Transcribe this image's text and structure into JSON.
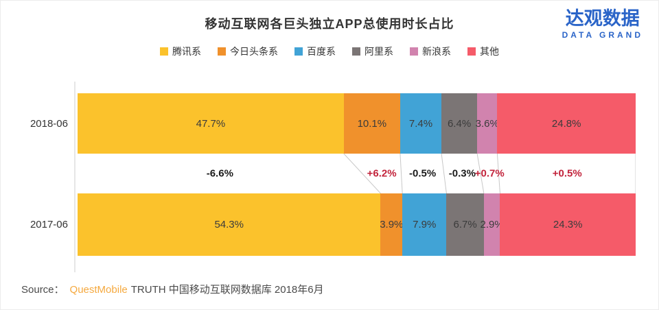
{
  "page": {
    "title": "移动互联网各巨头独立APP总使用时长占比",
    "logo": {
      "cn": "达观数据",
      "en": "DATA GRAND",
      "color": "#2A64C8"
    }
  },
  "chart_data": {
    "type": "bar",
    "subtype": "horizontal-stacked-100pct-comparison",
    "title": "移动互联网各巨头独立APP总使用时长占比",
    "categories": [
      "2018-06",
      "2017-06"
    ],
    "legend_position": "top",
    "unit": "%",
    "xlim": [
      0,
      100
    ],
    "grid": false,
    "connector_color": "#c8c8c8",
    "series": [
      {
        "name": "腾讯系",
        "color": "#FBC22C",
        "values": [
          47.7,
          54.3
        ],
        "labels": [
          "47.7%",
          "54.3%"
        ],
        "change": "-6.6%",
        "change_color": "#1b1b1b"
      },
      {
        "name": "今日头条系",
        "color": "#F0912C",
        "values": [
          10.1,
          3.9
        ],
        "labels": [
          "10.1%",
          "3.9%"
        ],
        "change": "+6.2%",
        "change_color": "#C2243C"
      },
      {
        "name": "百度系",
        "color": "#41A3D6",
        "values": [
          7.4,
          7.9
        ],
        "labels": [
          "7.4%",
          "7.9%"
        ],
        "change": "-0.5%",
        "change_color": "#1b1b1b"
      },
      {
        "name": "阿里系",
        "color": "#7B7575",
        "values": [
          6.4,
          6.7
        ],
        "labels": [
          "6.4%",
          "6.7%"
        ],
        "change": "-0.3%",
        "change_color": "#1b1b1b"
      },
      {
        "name": "新浪系",
        "color": "#D183AE",
        "values": [
          3.6,
          2.9
        ],
        "labels": [
          "3.6%",
          "2.9%"
        ],
        "change": "+0.7%",
        "change_color": "#C2243C"
      },
      {
        "name": "其他",
        "color": "#F55B69",
        "values": [
          24.8,
          24.3
        ],
        "labels": [
          "24.8%",
          "24.3%"
        ],
        "change": "+0.5%",
        "change_color": "#C2243C"
      }
    ]
  },
  "source": {
    "prefix": "Source：",
    "brand": "QuestMobile",
    "rest": "TRUTH 中国移动互联网数据库 2018年6月",
    "brand_color": "#F5A93F"
  }
}
